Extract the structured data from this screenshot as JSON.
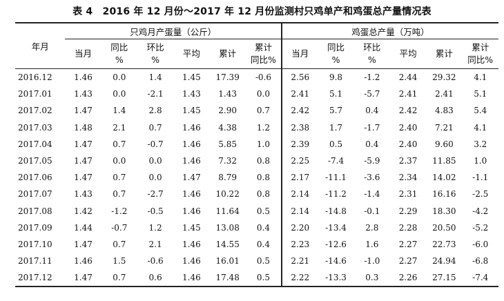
{
  "title": "表 4　2016 年 12 月份～2017 年 12 月份监测村只鸡单产和鸡蛋总产量情况表",
  "headers": {
    "month": "年月",
    "group1": "只鸡月产蛋量（公斤）",
    "group2": "鸡蛋总产量（万吨）",
    "current": "当月",
    "yoy_1": "同比",
    "yoy_2": "%",
    "mom_1": "环比",
    "mom_2": "%",
    "avg": "平均",
    "cum": "累计",
    "cumyoy_1": "累计",
    "cumyoy_2": "同比%"
  },
  "rows": [
    {
      "month": "2016.12",
      "v": [
        "1.46",
        "0.0",
        "1.4",
        "1.45",
        "17.39",
        "-0.6",
        "2.56",
        "9.8",
        "-1.2",
        "2.44",
        "29.32",
        "4.1"
      ]
    },
    {
      "month": "2017.01",
      "v": [
        "1.43",
        "0.0",
        "-2.1",
        "1.43",
        "1.43",
        "0.0",
        "2.41",
        "5.1",
        "-5.7",
        "2.41",
        "2.41",
        "5.1"
      ]
    },
    {
      "month": "2017.02",
      "v": [
        "1.47",
        "1.4",
        "2.8",
        "1.45",
        "2.90",
        "0.7",
        "2.42",
        "5.7",
        "0.4",
        "2.42",
        "4.83",
        "5.4"
      ]
    },
    {
      "month": "2017.03",
      "v": [
        "1.48",
        "2.1",
        "0.7",
        "1.46",
        "4.38",
        "1.2",
        "2.38",
        "1.7",
        "-1.7",
        "2.40",
        "7.21",
        "4.1"
      ]
    },
    {
      "month": "2017.04",
      "v": [
        "1.47",
        "0.7",
        "-0.7",
        "1.46",
        "5.85",
        "1.0",
        "2.39",
        "0.5",
        "0.4",
        "2.40",
        "9.60",
        "3.2"
      ]
    },
    {
      "month": "2017.05",
      "v": [
        "1.47",
        "0.0",
        "0.0",
        "1.46",
        "7.32",
        "0.8",
        "2.25",
        "-7.4",
        "-5.9",
        "2.37",
        "11.85",
        "1.0"
      ]
    },
    {
      "month": "2017.06",
      "v": [
        "1.47",
        "0.7",
        "0.0",
        "1.47",
        "8.79",
        "0.8",
        "2.17",
        "-11.1",
        "-3.6",
        "2.34",
        "14.02",
        "-1.1"
      ]
    },
    {
      "month": "2017.07",
      "v": [
        "1.43",
        "0.7",
        "-2.7",
        "1.46",
        "10.22",
        "0.8",
        "2.14",
        "-11.2",
        "-1.4",
        "2.31",
        "16.16",
        "-2.5"
      ]
    },
    {
      "month": "2017.08",
      "v": [
        "1.42",
        "-1.2",
        "-0.5",
        "1.46",
        "11.64",
        "0.5",
        "2.14",
        "-14.8",
        "-0.1",
        "2.29",
        "18.30",
        "-4.2"
      ]
    },
    {
      "month": "2017.09",
      "v": [
        "1.44",
        "-0.7",
        "1.2",
        "1.45",
        "13.08",
        "0.4",
        "2.20",
        "-13.4",
        "2.8",
        "2.28",
        "20.50",
        "-5.2"
      ]
    },
    {
      "month": "2017.10",
      "v": [
        "1.47",
        "0.7",
        "2.1",
        "1.46",
        "14.55",
        "0.4",
        "2.23",
        "-12.6",
        "1.6",
        "2.27",
        "22.73",
        "-6.0"
      ]
    },
    {
      "month": "2017.11",
      "v": [
        "1.46",
        "1.5",
        "-0.6",
        "1.46",
        "16.01",
        "0.5",
        "2.21",
        "-14.6",
        "-1.0",
        "2.27",
        "24.94",
        "-6.8"
      ]
    },
    {
      "month": "2017.12",
      "v": [
        "1.47",
        "0.7",
        "0.6",
        "1.46",
        "17.48",
        "0.5",
        "2.22",
        "-13.3",
        "0.3",
        "2.26",
        "27.15",
        "-7.4"
      ]
    }
  ]
}
